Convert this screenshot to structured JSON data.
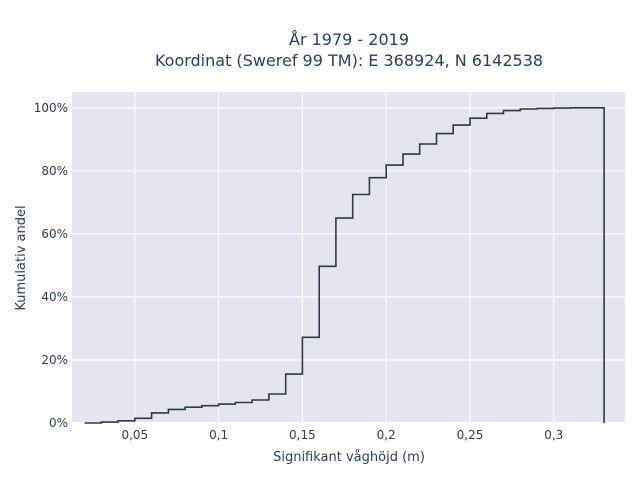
{
  "chart_data": {
    "type": "line",
    "line_shape": "step",
    "title_line1": "År 1979 - 2019",
    "title_line2": "Koordinat (Sweref 99 TM): E 368924, N 6142538",
    "xlabel": "Signifikant våghöjd (m)",
    "ylabel": "Kumulativ andel",
    "x_ticks": [
      0.05,
      0.1,
      0.15,
      0.2,
      0.25,
      0.3
    ],
    "x_tick_labels": [
      "0,05",
      "0,1",
      "0,15",
      "0,2",
      "0,25",
      "0,3"
    ],
    "y_ticks": [
      0,
      0.2,
      0.4,
      0.6,
      0.8,
      1.0
    ],
    "y_tick_labels": [
      "0%",
      "20%",
      "40%",
      "60%",
      "80%",
      "100%"
    ],
    "xlim": [
      0.0125,
      0.3425
    ],
    "ylim": [
      0,
      1.05
    ],
    "series": [
      {
        "x": [
          0.02,
          0.03,
          0.04,
          0.05,
          0.06,
          0.07,
          0.08,
          0.09,
          0.1,
          0.11,
          0.12,
          0.13,
          0.14,
          0.15,
          0.16,
          0.17,
          0.18,
          0.19,
          0.2,
          0.21,
          0.22,
          0.23,
          0.24,
          0.25,
          0.26,
          0.27,
          0.28,
          0.29,
          0.3,
          0.31,
          0.32,
          0.33
        ],
        "y": [
          0.0,
          0.003,
          0.007,
          0.015,
          0.032,
          0.043,
          0.05,
          0.055,
          0.06,
          0.065,
          0.073,
          0.092,
          0.155,
          0.272,
          0.497,
          0.65,
          0.725,
          0.778,
          0.818,
          0.853,
          0.885,
          0.918,
          0.945,
          0.967,
          0.982,
          0.991,
          0.996,
          0.998,
          0.999,
          1.0,
          1.0,
          0.0
        ],
        "color": "#2e3a4a"
      }
    ],
    "background": "#e5e5ef",
    "grid": true
  }
}
